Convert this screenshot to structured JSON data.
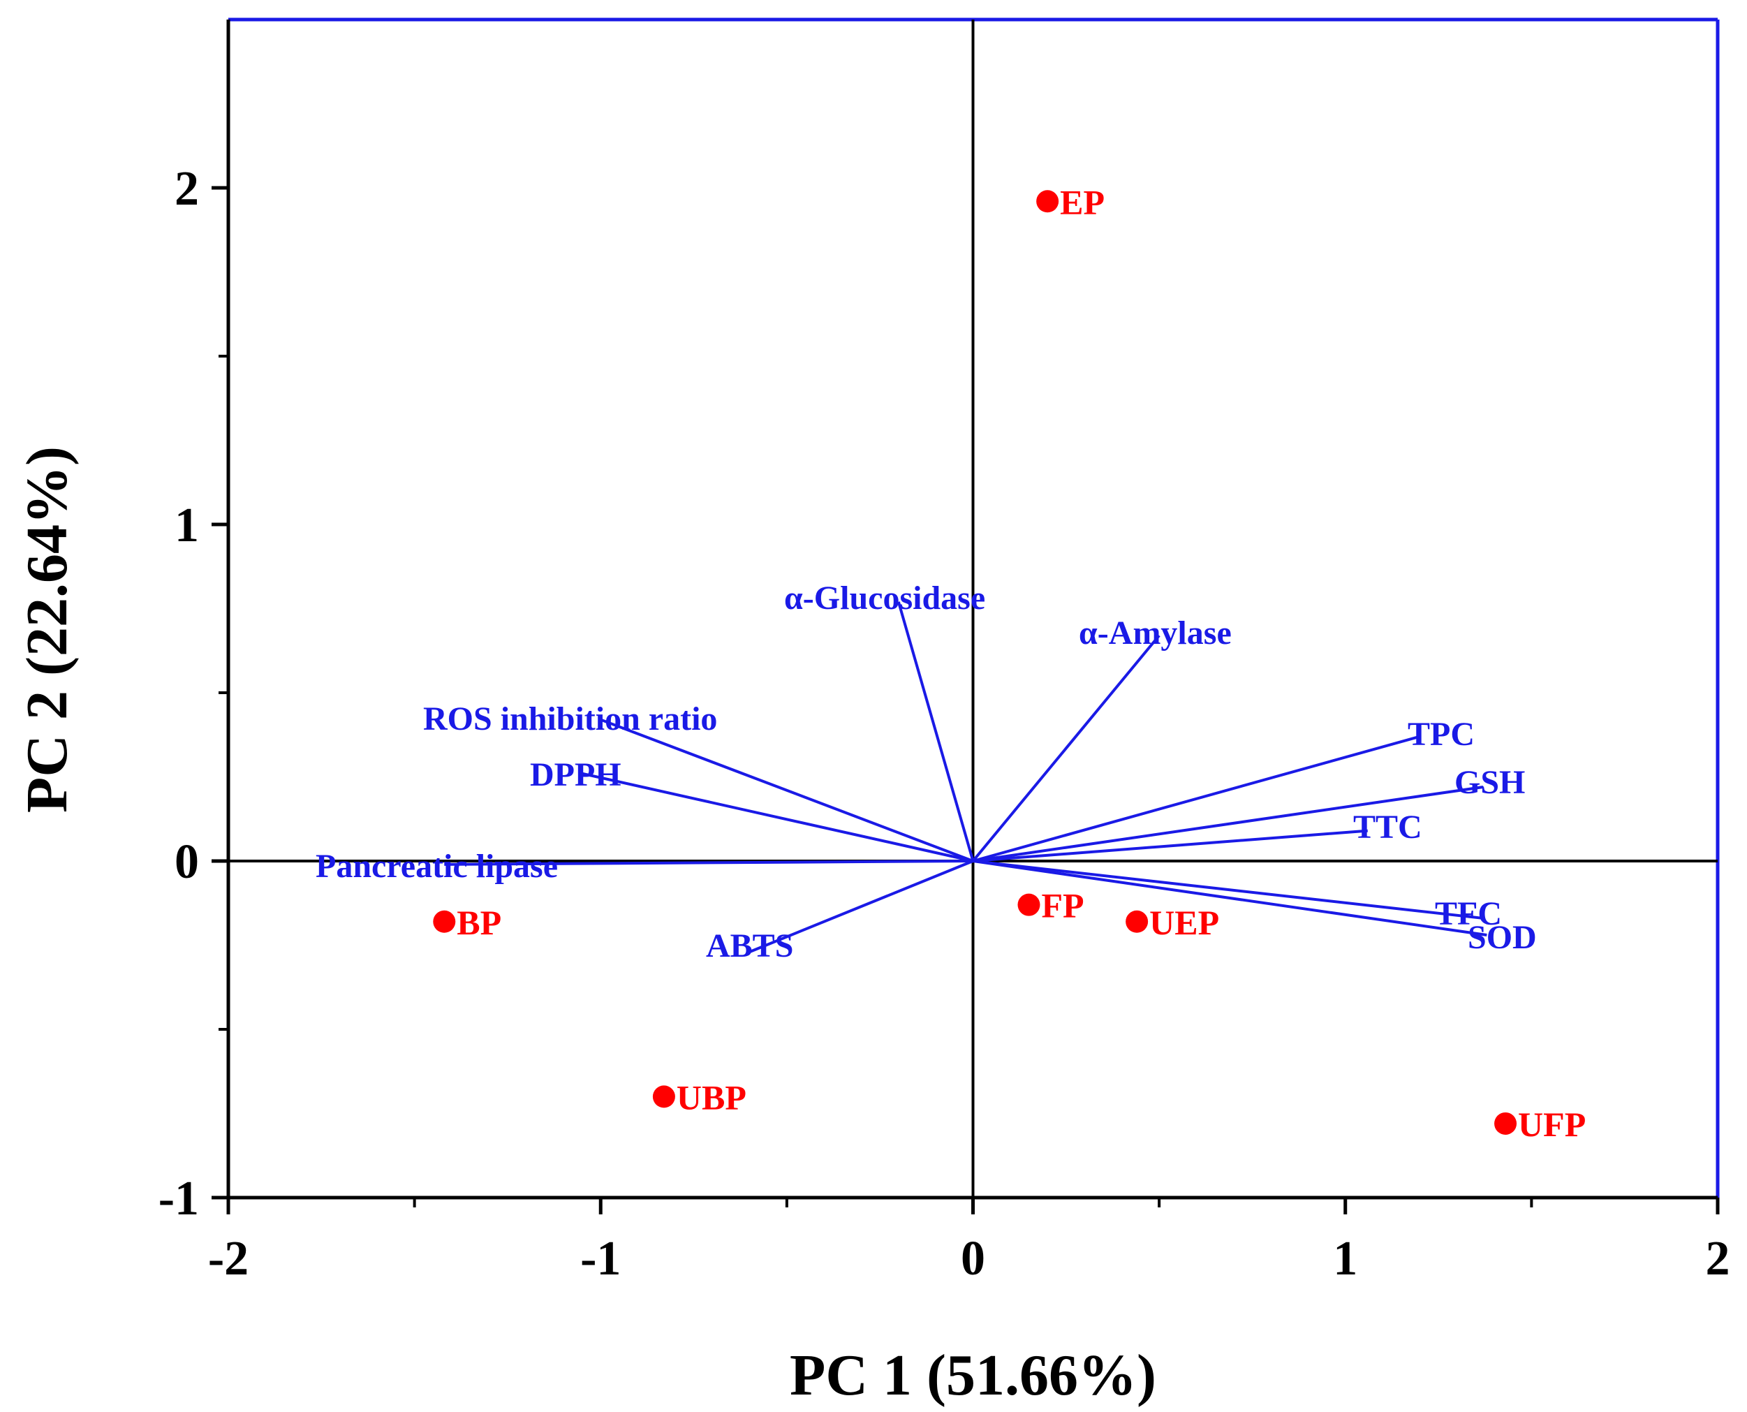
{
  "chart_data": {
    "type": "scatter",
    "subtype": "pca-biplot",
    "xlabel": "PC 1 (51.66%)",
    "ylabel": "PC 2 (22.64%)",
    "xlim": [
      -2,
      2
    ],
    "ylim": [
      -1,
      2.5
    ],
    "x_ticks": [
      -2,
      -1,
      0,
      1,
      2
    ],
    "x_tick_labels": [
      "-2",
      "-1",
      "0",
      "1",
      "2"
    ],
    "y_ticks": [
      -1,
      0,
      1,
      2
    ],
    "y_tick_labels": [
      "-1",
      "0",
      "1",
      "2"
    ],
    "zero_lines": true,
    "colors": {
      "scores": "#ff0000",
      "loadings": "#1a1ae6",
      "axes": "#000000",
      "frame_top_right": "#1a1ae6"
    },
    "scores": [
      {
        "label": "EP",
        "x": 0.2,
        "y": 1.96
      },
      {
        "label": "BP",
        "x": -1.42,
        "y": -0.18
      },
      {
        "label": "FP",
        "x": 0.15,
        "y": -0.13
      },
      {
        "label": "UEP",
        "x": 0.44,
        "y": -0.18
      },
      {
        "label": "UBP",
        "x": -0.83,
        "y": -0.7
      },
      {
        "label": "UFP",
        "x": 1.43,
        "y": -0.78
      }
    ],
    "loadings": [
      {
        "label": "α-Glucosidase",
        "x": -0.2,
        "y": 0.77
      },
      {
        "label": "α-Amylase",
        "x": 0.5,
        "y": 0.67
      },
      {
        "label": "ROS inhibition ratio",
        "x": -1.0,
        "y": 0.42
      },
      {
        "label": "DPPH",
        "x": -1.05,
        "y": 0.26
      },
      {
        "label": "Pancreatic lipase",
        "x": -1.42,
        "y": -0.01
      },
      {
        "label": "ABTS",
        "x": -0.6,
        "y": -0.27
      },
      {
        "label": "TPC",
        "x": 1.2,
        "y": 0.37
      },
      {
        "label": "GSH",
        "x": 1.37,
        "y": 0.22
      },
      {
        "label": "TTC",
        "x": 1.06,
        "y": 0.09
      },
      {
        "label": "TFC",
        "x": 1.37,
        "y": -0.17
      },
      {
        "label": "SOD",
        "x": 1.38,
        "y": -0.22
      }
    ]
  }
}
